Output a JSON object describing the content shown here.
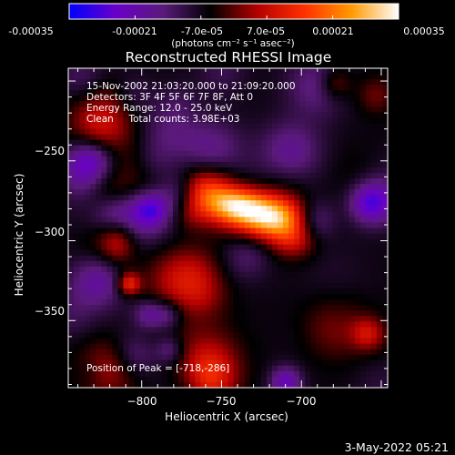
{
  "colorbar": {
    "ticks": [
      "-0.00035",
      "-0.00021",
      "-7.0e-05",
      "7.0e-05",
      "0.00021",
      "0.00035"
    ],
    "unit_label": "(photons cm⁻² s⁻¹ asec⁻²)",
    "range": [
      -0.00035,
      0.00035
    ],
    "colors": [
      "#0000ff",
      "#6a00c8",
      "#5a1a7a",
      "#000000",
      "#b40000",
      "#ff3000",
      "#ff9a00",
      "#ffffff"
    ]
  },
  "chart_data": {
    "type": "heatmap",
    "title": "Reconstructed RHESSI Image",
    "xlabel": "Heliocentric X (arcsec)",
    "ylabel": "Heliocentric Y (arcsec)",
    "xlim": [
      -846,
      -646
    ],
    "ylim": [
      -392,
      -192
    ],
    "x_ticks": [
      -800,
      -750,
      -700
    ],
    "y_ticks": [
      -250,
      -300,
      -350
    ],
    "x_tick_labels": [
      "−800",
      "−750",
      "−700"
    ],
    "y_tick_labels": [
      "−250",
      "−300",
      "−350"
    ],
    "peak": [
      -718,
      -286
    ],
    "source_peaks": [
      [
        -718,
        -286
      ],
      [
        -740,
        -278
      ],
      [
        -815,
        -300
      ],
      [
        -808,
        -327
      ]
    ],
    "annotations": [
      "15-Nov-2002 21:03:20.000 to 21:09:20.000",
      "Detectors: 3F 4F 5F 6F 7F 8F, Att 0",
      "Energy Range: 12.0 - 25.0 keV",
      "Clean     Total counts: 3.98E+03"
    ],
    "peak_label": "Position of Peak = [-718,-286]"
  },
  "footer": {
    "date": "3-May-2022 05:21"
  }
}
